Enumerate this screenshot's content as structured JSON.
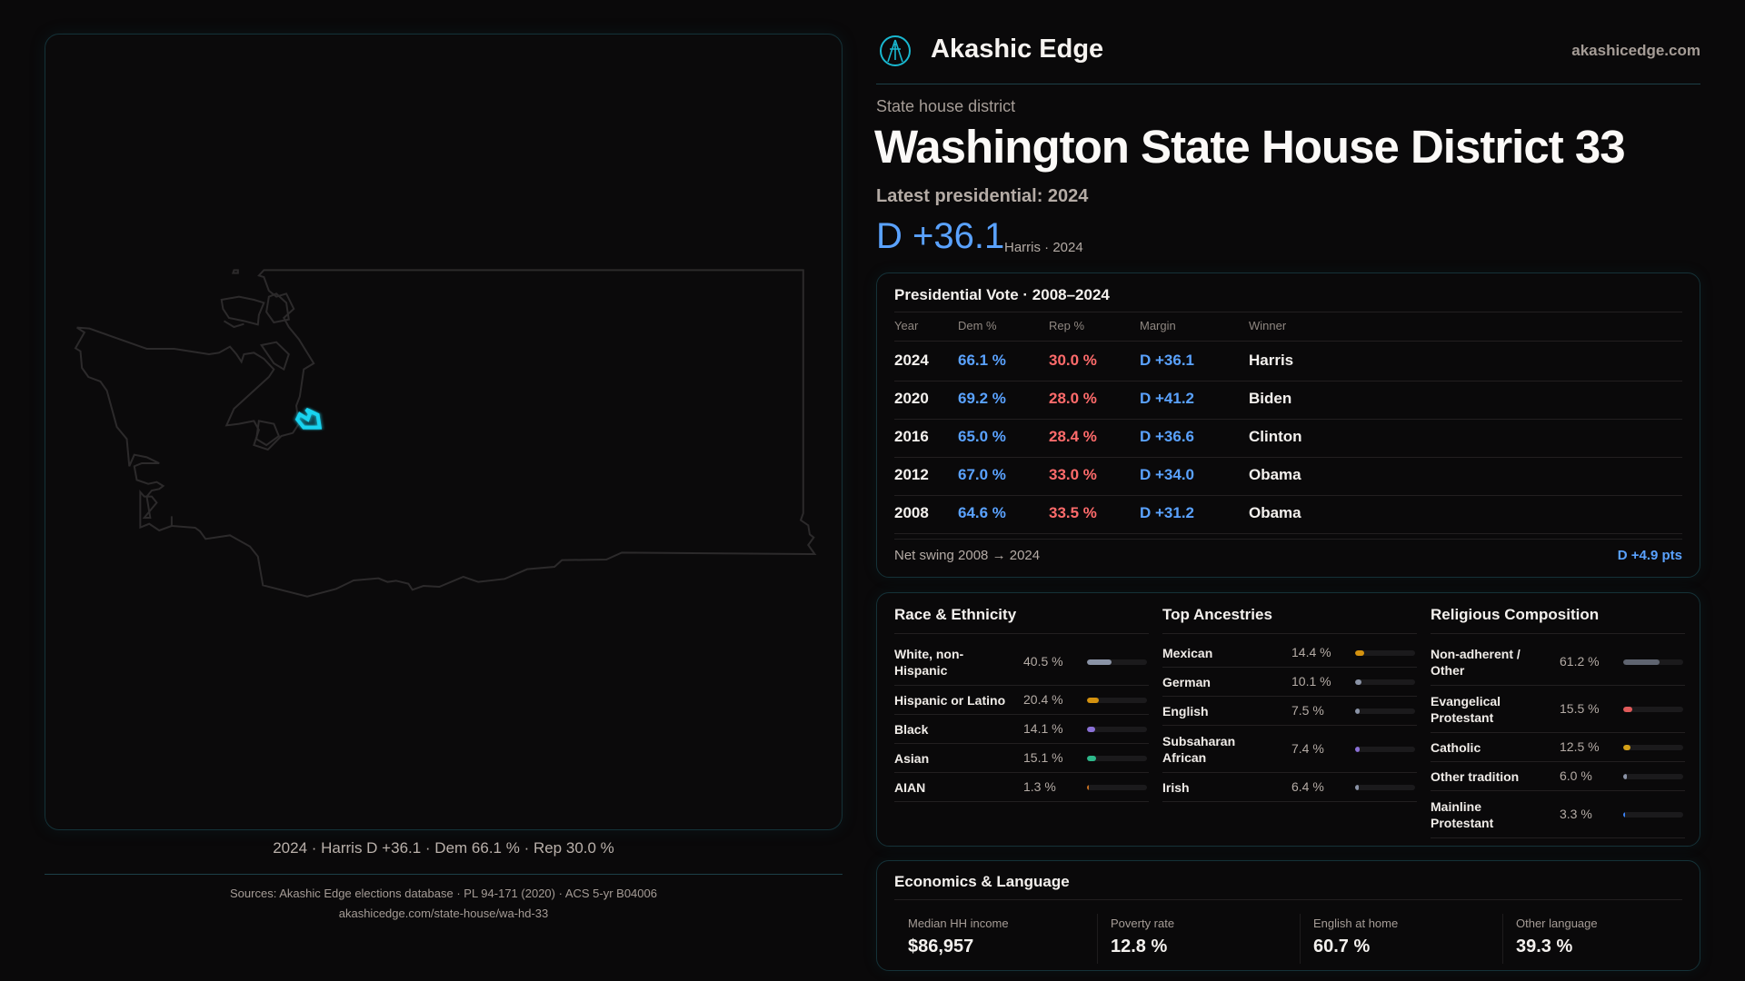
{
  "brand": {
    "name": "Akashic Edge",
    "url": "akashicedge.com",
    "logo_icon": "akashic-edge-logo"
  },
  "page": {
    "kind": "State house district",
    "title": "Washington State House District 33",
    "latest": "Latest presidential: 2024",
    "margin": "D +36.1",
    "margin_sub": "Harris · 2024"
  },
  "map": {
    "caption": "2024 · Harris D +36.1 · Dem 66.1 % · Rep 30.0 %",
    "highlight_color": "#19d3f0"
  },
  "pres": {
    "title": "Presidential Vote · 2008–2024",
    "headers": [
      "Year",
      "Dem %",
      "Rep %",
      "Margin",
      "Winner"
    ],
    "rows": [
      {
        "year": "2024",
        "dem": "66.1 %",
        "rep": "30.0 %",
        "margin": "D +36.1",
        "winner": "Harris"
      },
      {
        "year": "2020",
        "dem": "69.2 %",
        "rep": "28.0 %",
        "margin": "D +41.2",
        "winner": "Biden"
      },
      {
        "year": "2016",
        "dem": "65.0 %",
        "rep": "28.4 %",
        "margin": "D +36.6",
        "winner": "Clinton"
      },
      {
        "year": "2012",
        "dem": "67.0 %",
        "rep": "33.0 %",
        "margin": "D +34.0",
        "winner": "Obama"
      },
      {
        "year": "2008",
        "dem": "64.6 %",
        "rep": "33.5 %",
        "margin": "D +31.2",
        "winner": "Obama"
      }
    ],
    "swing_label": "Net swing 2008 → 2024",
    "swing_value": "D +4.9 pts"
  },
  "demo": [
    {
      "title": "Race & Ethnicity",
      "items": [
        {
          "label": "White, non-Hispanic",
          "value": "40.5 %",
          "pct": 40.5,
          "color": "#8a93a6"
        },
        {
          "label": "Hispanic or Latino",
          "value": "20.4 %",
          "pct": 20.4,
          "color": "#d4920f"
        },
        {
          "label": "Black",
          "value": "14.1 %",
          "pct": 14.1,
          "color": "#8a70d6"
        },
        {
          "label": "Asian",
          "value": "15.1 %",
          "pct": 15.1,
          "color": "#2db88a"
        },
        {
          "label": "AIAN",
          "value": "1.3 %",
          "pct": 1.3,
          "color": "#c87020"
        }
      ]
    },
    {
      "title": "Top Ancestries",
      "items": [
        {
          "label": "Mexican",
          "value": "14.4 %",
          "pct": 14.4,
          "color": "#d4920f"
        },
        {
          "label": "German",
          "value": "10.1 %",
          "pct": 10.1,
          "color": "#8a93a6"
        },
        {
          "label": "English",
          "value": "7.5 %",
          "pct": 7.5,
          "color": "#8a93a6"
        },
        {
          "label": "Subsaharan African",
          "value": "7.4 %",
          "pct": 7.4,
          "color": "#8a70d6"
        },
        {
          "label": "Irish",
          "value": "6.4 %",
          "pct": 6.4,
          "color": "#8a93a6"
        }
      ]
    },
    {
      "title": "Religious Composition",
      "items": [
        {
          "label": "Non-adherent / Other",
          "value": "61.2 %",
          "pct": 61.2,
          "color": "#5f6470"
        },
        {
          "label": "Evangelical Protestant",
          "value": "15.5 %",
          "pct": 15.5,
          "color": "#e05a5a"
        },
        {
          "label": "Catholic",
          "value": "12.5 %",
          "pct": 12.5,
          "color": "#d4a017"
        },
        {
          "label": "Other tradition",
          "value": "6.0 %",
          "pct": 6.0,
          "color": "#8a93a6"
        },
        {
          "label": "Mainline Protestant",
          "value": "3.3 %",
          "pct": 3.3,
          "color": "#3b82f6"
        }
      ]
    }
  ],
  "econ": {
    "title": "Economics & Language",
    "items": [
      {
        "label": "Median HH income",
        "value": "$86,957"
      },
      {
        "label": "Poverty rate",
        "value": "12.8 %"
      },
      {
        "label": "English at home",
        "value": "60.7 %"
      },
      {
        "label": "Other language",
        "value": "39.3 %"
      }
    ]
  },
  "sources": {
    "line1": "Sources: Akashic Edge elections database · PL 94-171 (2020) · ACS 5-yr B04006",
    "line2": "akashicedge.com/state-house/wa-hd-33"
  }
}
